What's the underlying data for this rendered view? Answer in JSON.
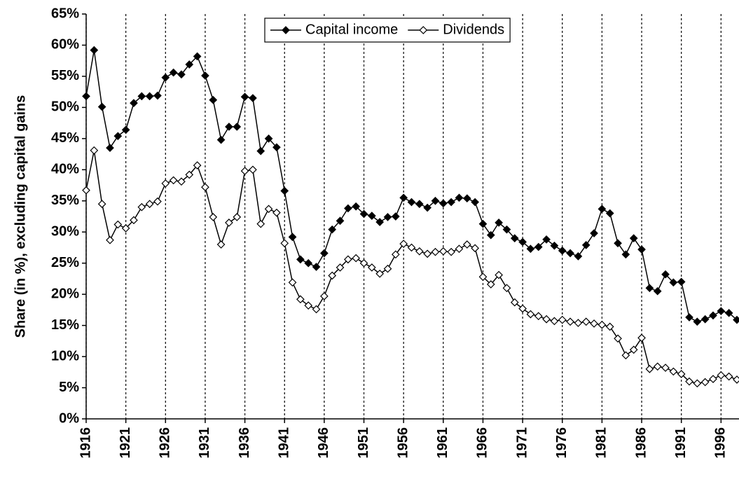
{
  "chart_data": {
    "type": "line",
    "y_label": "Share (in %), excluding capital gains",
    "x": [
      1916,
      1917,
      1918,
      1919,
      1920,
      1921,
      1922,
      1923,
      1924,
      1925,
      1926,
      1927,
      1928,
      1929,
      1930,
      1931,
      1932,
      1933,
      1934,
      1935,
      1936,
      1937,
      1938,
      1939,
      1940,
      1941,
      1942,
      1943,
      1944,
      1945,
      1946,
      1947,
      1948,
      1949,
      1950,
      1951,
      1952,
      1953,
      1954,
      1955,
      1956,
      1957,
      1958,
      1959,
      1960,
      1961,
      1962,
      1963,
      1964,
      1965,
      1966,
      1967,
      1968,
      1969,
      1970,
      1971,
      1972,
      1973,
      1974,
      1975,
      1976,
      1977,
      1978,
      1979,
      1980,
      1981,
      1982,
      1983,
      1984,
      1985,
      1986,
      1987,
      1988,
      1989,
      1990,
      1991,
      1992,
      1993,
      1994,
      1995,
      1996,
      1997,
      1998
    ],
    "series": [
      {
        "name": "Capital income",
        "color": "#000000",
        "marker_fill": "#000000",
        "values": [
          51.8,
          59.2,
          50.1,
          43.5,
          45.4,
          46.4,
          50.7,
          51.8,
          51.8,
          51.9,
          54.8,
          55.6,
          55.3,
          56.9,
          58.2,
          55.1,
          51.2,
          44.8,
          46.9,
          46.9,
          51.7,
          51.5,
          43.0,
          45.0,
          43.6,
          36.6,
          29.2,
          25.6,
          25.0,
          24.4,
          26.6,
          30.4,
          31.8,
          33.8,
          34.1,
          32.9,
          32.6,
          31.6,
          32.4,
          32.5,
          35.5,
          34.8,
          34.5,
          33.9,
          35.0,
          34.6,
          34.8,
          35.5,
          35.4,
          34.8,
          31.3,
          29.5,
          31.5,
          30.4,
          29.0,
          28.4,
          27.3,
          27.6,
          28.8,
          27.8,
          27.0,
          26.6,
          26.1,
          27.9,
          29.8,
          33.7,
          33.0,
          28.2,
          26.4,
          29.0,
          27.2,
          21.0,
          20.5,
          23.2,
          21.9,
          22.0,
          16.3,
          15.6,
          16.0,
          16.6,
          17.3,
          17.0,
          15.9
        ]
      },
      {
        "name": "Dividends",
        "color": "#000000",
        "marker_fill": "#ffffff",
        "values": [
          36.7,
          43.1,
          34.5,
          28.7,
          31.2,
          30.6,
          31.9,
          34.0,
          34.5,
          34.9,
          37.8,
          38.3,
          38.1,
          39.2,
          40.7,
          37.2,
          32.4,
          28.0,
          31.5,
          32.4,
          39.8,
          40.0,
          31.3,
          33.7,
          33.1,
          28.2,
          21.9,
          19.2,
          18.2,
          17.6,
          19.7,
          23.0,
          24.3,
          25.6,
          25.8,
          25.0,
          24.3,
          23.3,
          24.1,
          26.4,
          28.1,
          27.5,
          26.9,
          26.5,
          26.8,
          26.9,
          26.8,
          27.3,
          28.0,
          27.4,
          22.8,
          21.6,
          23.1,
          21.0,
          18.7,
          17.7,
          16.8,
          16.5,
          16.0,
          15.7,
          15.9,
          15.6,
          15.4,
          15.6,
          15.3,
          15.1,
          14.8,
          12.9,
          10.2,
          11.1,
          13.0,
          8.0,
          8.4,
          8.2,
          7.6,
          7.2,
          6.0,
          5.7,
          5.9,
          6.4,
          7.0,
          6.8,
          6.3
        ]
      }
    ],
    "xlim": [
      1916,
      1998
    ],
    "xticks": [
      1916,
      1921,
      1926,
      1931,
      1936,
      1941,
      1946,
      1951,
      1956,
      1961,
      1966,
      1971,
      1976,
      1981,
      1986,
      1991,
      1996
    ],
    "ylim": [
      0,
      65
    ],
    "yticks": [
      {
        "value": 0,
        "label": "0%"
      },
      {
        "value": 5,
        "label": "5%"
      },
      {
        "value": 10,
        "label": "10%"
      },
      {
        "value": 15,
        "label": "15%"
      },
      {
        "value": 20,
        "label": "20%"
      },
      {
        "value": 25,
        "label": "25%"
      },
      {
        "value": 30,
        "label": "30%"
      },
      {
        "value": 35,
        "label": "35%"
      },
      {
        "value": 40,
        "label": "40%"
      },
      {
        "value": 45,
        "label": "45%"
      },
      {
        "value": 50,
        "label": "50%"
      },
      {
        "value": 55,
        "label": "55%"
      },
      {
        "value": 60,
        "label": "60%"
      },
      {
        "value": 65,
        "label": "65%"
      }
    ],
    "x_grid": true,
    "legend_position": "top"
  }
}
